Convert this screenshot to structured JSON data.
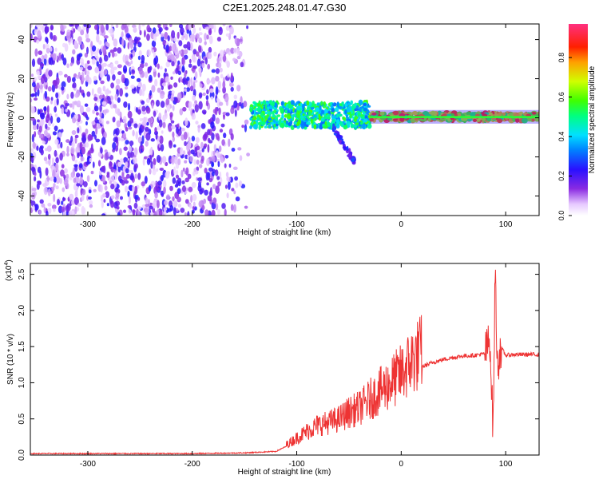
{
  "title": "C2E1.2025.248.01.47.G30",
  "colors": {
    "snr_line": "#ee3333",
    "spec_low": "#7a1dff",
    "spec_mid": "#00e0b0",
    "spec_high": "#ff0000"
  },
  "chart_data": [
    {
      "type": "heatmap",
      "title": "",
      "xlabel": "Height of straight line (km)",
      "ylabel": "Frequency (Hz)",
      "xlim": [
        -355,
        132
      ],
      "ylim": [
        -50,
        48
      ],
      "xticks": [
        -300,
        -200,
        -100,
        0,
        100
      ],
      "yticks": [
        -40,
        -20,
        0,
        20,
        40
      ],
      "grid": false,
      "colorbar": {
        "label": "Normalized spectral amplitude",
        "range": [
          0.0,
          0.97
        ],
        "ticks": [
          "0.0",
          "0.2",
          "0.4",
          "0.6",
          "0.8"
        ],
        "tick_values": [
          0.0,
          0.2,
          0.4,
          0.6,
          0.8
        ],
        "colormap": "rainbow"
      },
      "regions": [
        {
          "x_from": -355,
          "x_to": -145,
          "f_from": -50,
          "f_to": 48,
          "amplitude": [
            0.1,
            0.25
          ],
          "description": "broadband noise"
        },
        {
          "x_from": -145,
          "x_to": -30,
          "f_from": -5,
          "f_to": 8,
          "amplitude": [
            0.3,
            0.6
          ]
        },
        {
          "x_from": -65,
          "x_to": -45,
          "f_from": -22,
          "f_to": -5,
          "amplitude": [
            0.15,
            0.3
          ]
        },
        {
          "x_from": -30,
          "x_to": 132,
          "f_from": -3,
          "f_to": 4,
          "amplitude": [
            0.5,
            0.9
          ]
        }
      ]
    },
    {
      "type": "line",
      "title": "",
      "xlabel": "Height of straight line (km)",
      "ylabel": "SNR (10 * v/v)",
      "y_multiplier": "(x10^4)",
      "y_multiplier_base": "(x10",
      "y_multiplier_exp": "4",
      "y_multiplier_close": ")",
      "xlim": [
        -355,
        132
      ],
      "ylim": [
        0.0,
        2.65
      ],
      "xticks": [
        -300,
        -200,
        -100,
        0,
        100
      ],
      "yticks": [
        "0.0",
        "0.5",
        "1.0",
        "1.5",
        "2.0",
        "2.5"
      ],
      "ytick_values": [
        0.0,
        0.5,
        1.0,
        1.5,
        2.0,
        2.5
      ],
      "grid": false,
      "series": [
        {
          "x": [
            -355,
            -300,
            -250,
            -200,
            -150,
            -120,
            -110,
            -100,
            -90,
            -80,
            -70,
            -60,
            -50,
            -40,
            -30,
            -20,
            -10,
            0,
            10,
            20,
            30,
            40,
            50,
            60,
            70,
            80,
            85,
            88,
            90,
            92,
            95,
            100,
            110,
            120,
            132
          ],
          "y": [
            0.02,
            0.02,
            0.02,
            0.02,
            0.03,
            0.05,
            0.12,
            0.2,
            0.28,
            0.35,
            0.38,
            0.42,
            0.5,
            0.55,
            0.65,
            0.75,
            0.85,
            0.95,
            1.1,
            1.22,
            1.28,
            1.32,
            1.35,
            1.37,
            1.38,
            1.4,
            1.6,
            0.3,
            2.6,
            1.2,
            1.5,
            1.38,
            1.39,
            1.39,
            1.39
          ]
        }
      ]
    }
  ]
}
